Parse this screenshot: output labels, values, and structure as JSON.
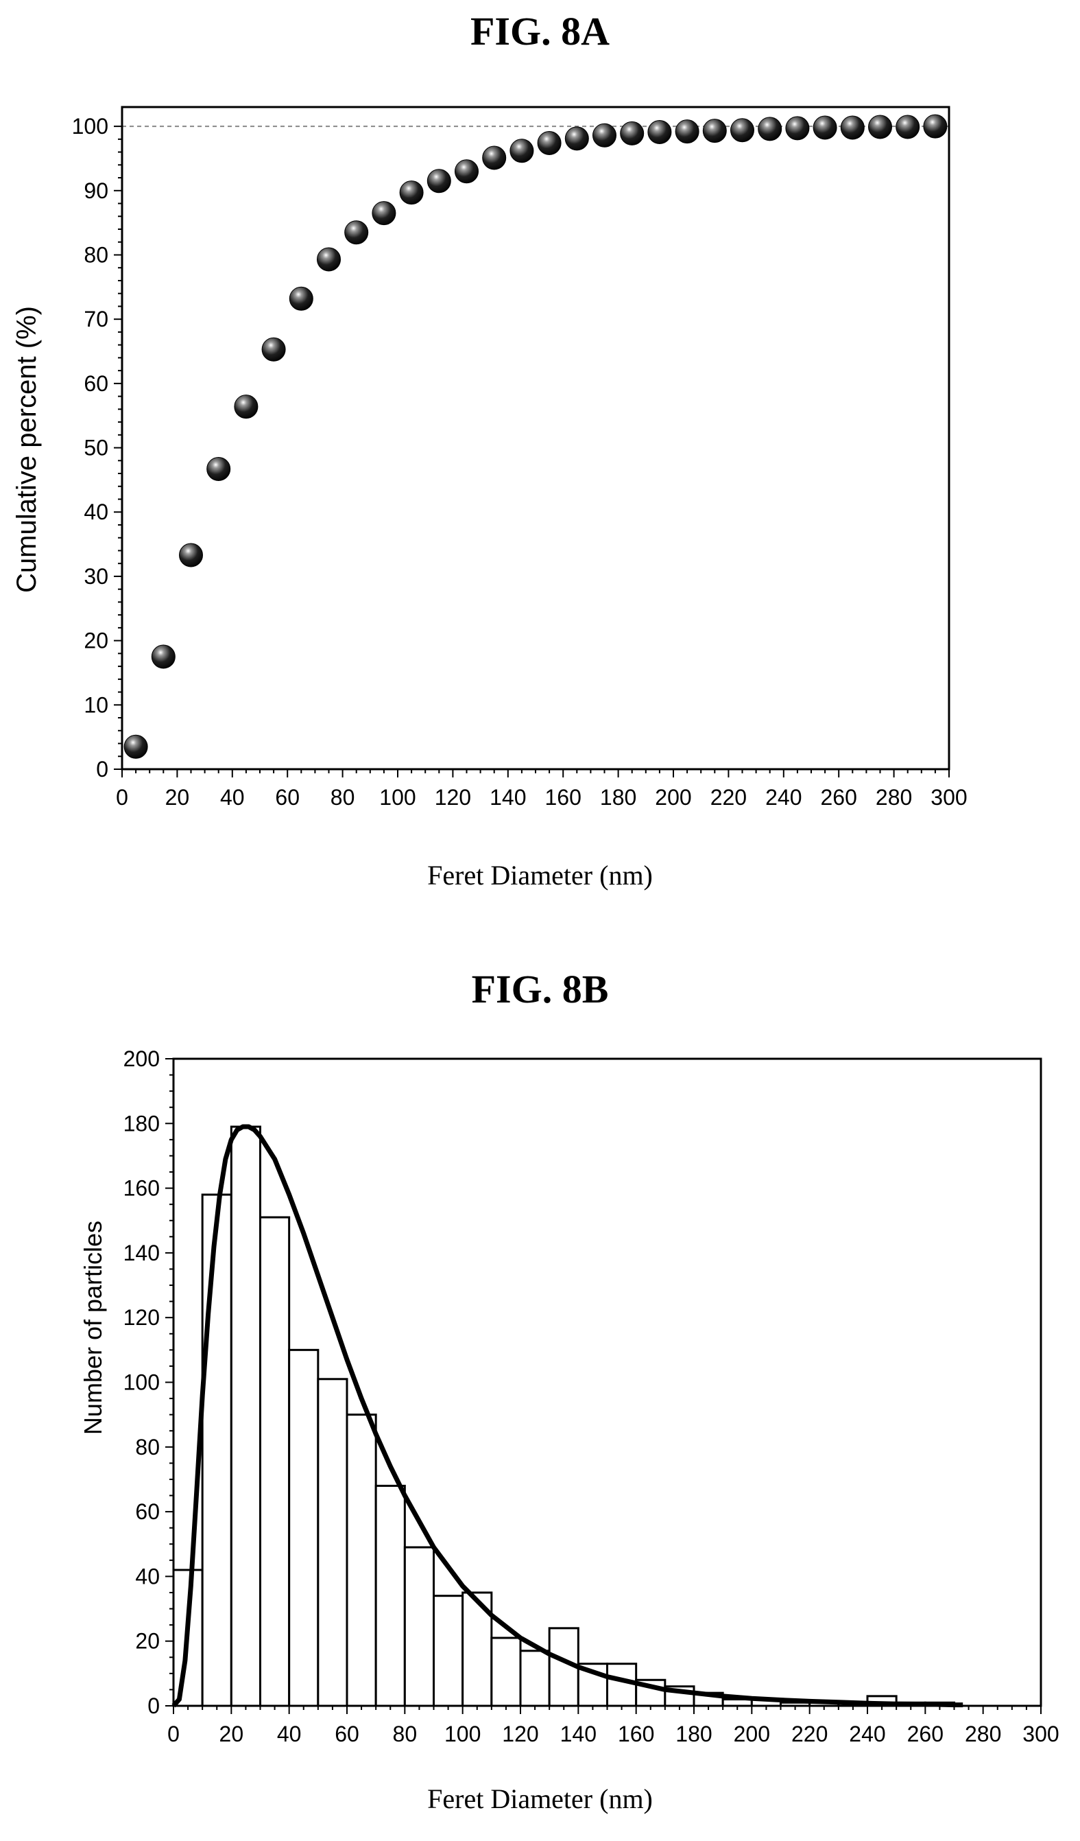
{
  "figures": {
    "a": {
      "title": "FIG. 8A",
      "xlabel": "Feret Diameter (nm)",
      "ylabel": "Cumulative percent (%)"
    },
    "b": {
      "title": "FIG. 8B",
      "xlabel": "Feret Diameter (nm)",
      "ylabel": "Number of particles"
    }
  },
  "chart_data": [
    {
      "type": "scatter",
      "title": "FIG. 8A",
      "xlabel": "Feret Diameter (nm)",
      "ylabel": "Cumulative percent (%)",
      "xlim": [
        0,
        300
      ],
      "ylim": [
        0,
        103
      ],
      "xticks": [
        0,
        20,
        40,
        60,
        80,
        100,
        120,
        140,
        160,
        180,
        200,
        220,
        240,
        260,
        280,
        300
      ],
      "yticks": [
        0,
        10,
        20,
        30,
        40,
        50,
        60,
        70,
        80,
        90,
        100
      ],
      "reference_line_y": 100,
      "x": [
        5,
        15,
        25,
        35,
        45,
        55,
        65,
        75,
        85,
        95,
        105,
        115,
        125,
        135,
        145,
        155,
        165,
        175,
        185,
        195,
        205,
        215,
        225,
        235,
        245,
        255,
        265,
        275,
        285,
        295
      ],
      "y": [
        3.5,
        17.5,
        33.3,
        46.7,
        56.4,
        65.3,
        73.2,
        79.3,
        83.5,
        86.5,
        89.7,
        91.5,
        93.0,
        95.1,
        96.2,
        97.4,
        98.1,
        98.6,
        98.9,
        99.1,
        99.2,
        99.3,
        99.4,
        99.6,
        99.7,
        99.8,
        99.8,
        99.9,
        99.9,
        100
      ]
    },
    {
      "type": "bar",
      "title": "FIG. 8B",
      "xlabel": "Feret Diameter (nm)",
      "ylabel": "Number of particles",
      "xlim": [
        0,
        300
      ],
      "ylim": [
        0,
        200
      ],
      "xticks": [
        0,
        20,
        40,
        60,
        80,
        100,
        120,
        140,
        160,
        180,
        200,
        220,
        240,
        260,
        280,
        300
      ],
      "yticks": [
        0,
        20,
        40,
        60,
        80,
        100,
        120,
        140,
        160,
        180,
        200
      ],
      "bin_width": 10,
      "bin_starts": [
        0,
        10,
        20,
        30,
        40,
        50,
        60,
        70,
        80,
        90,
        100,
        110,
        120,
        130,
        140,
        150,
        160,
        170,
        180,
        190,
        200,
        210,
        220,
        230,
        240,
        250,
        260,
        270
      ],
      "values": [
        42,
        158,
        179,
        151,
        110,
        101,
        90,
        68,
        49,
        34,
        35,
        21,
        17,
        24,
        13,
        13,
        8,
        6,
        4,
        2,
        2,
        1,
        1,
        1,
        3,
        1,
        1,
        0
      ],
      "fit_curve": {
        "type": "line",
        "x": [
          0,
          2,
          4,
          6,
          8,
          10,
          12,
          14,
          16,
          18,
          20,
          22,
          24,
          26,
          28,
          30,
          35,
          40,
          45,
          50,
          55,
          60,
          65,
          70,
          75,
          80,
          90,
          100,
          110,
          120,
          130,
          140,
          150,
          160,
          170,
          180,
          190,
          200,
          210,
          220,
          230,
          240,
          250,
          260,
          270,
          273
        ],
        "y": [
          0,
          2,
          14,
          37,
          66,
          96,
          121,
          142,
          158,
          169,
          175,
          178,
          179,
          179,
          178,
          176,
          169,
          158,
          146,
          133,
          120,
          107,
          95,
          84,
          74,
          65,
          49,
          37,
          28,
          21,
          16,
          12,
          9,
          7,
          5,
          4,
          3,
          2.3,
          1.8,
          1.4,
          1.1,
          0.8,
          0.6,
          0.5,
          0.3,
          0.3
        ]
      }
    }
  ]
}
